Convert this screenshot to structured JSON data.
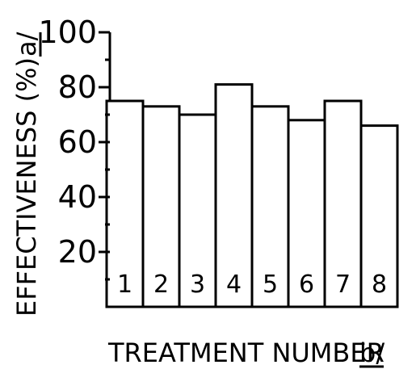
{
  "chart_data": {
    "type": "bar",
    "categories": [
      "1",
      "2",
      "3",
      "4",
      "5",
      "6",
      "7",
      "8"
    ],
    "values": [
      75,
      73,
      70,
      81,
      73,
      68,
      75,
      66
    ],
    "title": "",
    "xlabel": "TREATMENT NUMBER",
    "xlabel_footnote": "b/",
    "ylabel": "EFFECTIVENESS (%)",
    "ylabel_footnote": "a/",
    "ylim": [
      0,
      100
    ],
    "yticks": [
      "20",
      "40",
      "60",
      "80",
      "100"
    ],
    "ytick_values": [
      20,
      40,
      60,
      80,
      100
    ],
    "yticks_minor": [
      10,
      30,
      50,
      70,
      90
    ],
    "grid": false,
    "bar_labels_position": "inside-bottom",
    "colors": {
      "bar_fill": "#ffffff",
      "stroke": "#000000"
    }
  }
}
